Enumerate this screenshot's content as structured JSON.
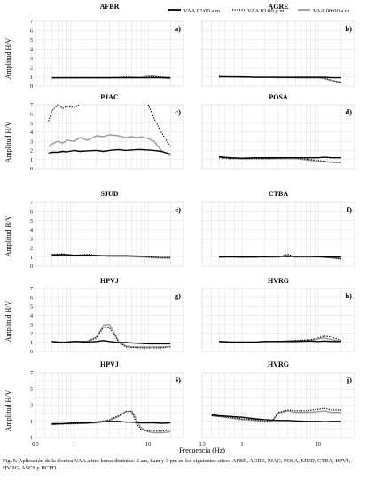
{
  "figure": {
    "caption": "Fig. 5: Aplicación de la técnica VAA a tres horas distintas: 2 am, 8am y 3 pm en los siguientes sitios: AFBR, AGRE, PJAC, POSA, SJUD, CTBA, HPVJ, HVRG, ASCS y HCPD.",
    "ylabel": "Amplitud H/V",
    "xlabel": "Frecuencia (Hz)",
    "legend": [
      {
        "label": "VAA 02:00 a.m.",
        "color": "#000000",
        "style": "solid"
      },
      {
        "label": "VAA 03:00 p.m.",
        "color": "#000000",
        "style": "dotted"
      },
      {
        "label": "VAA 08:00 a.m.",
        "color": "#999999",
        "style": "solid"
      }
    ],
    "xticks": [
      "0,3",
      "1",
      "10"
    ],
    "xtick_values": [
      0.3,
      1,
      10
    ]
  },
  "chart_data": [
    {
      "type": "line",
      "title": "AFBR",
      "letter": "a)",
      "xscale": "log",
      "xlim": [
        0.3,
        30
      ],
      "ylim": [
        0,
        7
      ],
      "yticks": [
        "0",
        "1",
        "2",
        "3",
        "4",
        "5",
        "6",
        "7"
      ],
      "x": [
        0.5,
        0.7,
        1,
        1.5,
        2,
        3,
        5,
        8,
        10,
        12,
        15,
        20
      ],
      "series": [
        {
          "name": "VAA 02:00 a.m.",
          "values": [
            0.9,
            0.9,
            0.9,
            0.9,
            0.9,
            0.9,
            0.9,
            0.9,
            0.9,
            0.9,
            0.9,
            0.9
          ]
        },
        {
          "name": "VAA 03:00 p.m.",
          "values": [
            0.9,
            0.9,
            0.9,
            0.9,
            0.9,
            0.9,
            1.0,
            0.9,
            1.0,
            1.0,
            1.0,
            0.9
          ]
        },
        {
          "name": "VAA 08:00 a.m.",
          "values": [
            0.85,
            0.9,
            0.9,
            0.9,
            0.9,
            0.9,
            0.9,
            0.95,
            1.1,
            1.1,
            0.9,
            0.8
          ]
        }
      ]
    },
    {
      "type": "line",
      "title": "AGRE",
      "letter": "b)",
      "xscale": "log",
      "xlim": [
        0.3,
        30
      ],
      "ylim": [
        0,
        7
      ],
      "yticks": [
        "",
        "",
        "",
        "",
        "",
        "",
        "",
        ""
      ],
      "x": [
        0.5,
        0.7,
        1,
        1.5,
        2,
        3,
        5,
        8,
        10,
        12,
        15,
        20
      ],
      "series": [
        {
          "name": "VAA 02:00 a.m.",
          "values": [
            1.0,
            1.0,
            1.0,
            0.95,
            0.95,
            0.95,
            0.95,
            0.95,
            0.95,
            0.95,
            0.9,
            0.9
          ]
        },
        {
          "name": "VAA 03:00 p.m.",
          "values": [
            1.05,
            1.0,
            1.0,
            0.95,
            0.95,
            0.95,
            0.9,
            0.9,
            0.9,
            0.9,
            0.6,
            0.4
          ]
        },
        {
          "name": "VAA 08:00 a.m.",
          "values": [
            1.0,
            1.0,
            0.95,
            0.95,
            0.95,
            0.9,
            0.9,
            0.9,
            0.9,
            0.8,
            0.6,
            0.4
          ]
        }
      ]
    },
    {
      "type": "line",
      "title": "PJAC",
      "letter": "c)",
      "xscale": "log",
      "xlim": [
        0.3,
        30
      ],
      "ylim": [
        0,
        7
      ],
      "yticks": [
        "0",
        "1",
        "2",
        "3",
        "4",
        "5",
        "6",
        "7"
      ],
      "x": [
        0.45,
        0.5,
        0.6,
        0.7,
        0.8,
        1,
        1.2,
        1.5,
        2,
        2.5,
        3,
        4,
        5,
        6,
        7,
        8,
        10,
        12,
        15,
        20
      ],
      "series": [
        {
          "name": "VAA 02:00 a.m.",
          "values": [
            1.7,
            1.8,
            1.8,
            1.9,
            1.85,
            2.0,
            1.9,
            1.95,
            2.0,
            1.9,
            2.0,
            2.1,
            2.0,
            2.05,
            2.1,
            2.1,
            2.05,
            2.0,
            1.9,
            1.6
          ]
        },
        {
          "name": "VAA 03:00 p.m.",
          "values": [
            5.2,
            6.3,
            7.0,
            6.6,
            6.8,
            6.7,
            7.0,
            null,
            null,
            null,
            null,
            null,
            null,
            null,
            null,
            null,
            7.0,
            5.5,
            4.0,
            2.4
          ]
        },
        {
          "name": "VAA 08:00 a.m.",
          "values": [
            2.4,
            2.7,
            3.0,
            2.8,
            3.1,
            3.0,
            3.4,
            3.1,
            3.6,
            3.5,
            3.7,
            3.6,
            3.4,
            3.5,
            3.4,
            3.5,
            3.3,
            3.0,
            2.0,
            1.4
          ]
        }
      ]
    },
    {
      "type": "line",
      "title": "POSA",
      "letter": "d)",
      "xscale": "log",
      "xlim": [
        0.3,
        30
      ],
      "ylim": [
        0,
        7
      ],
      "yticks": [
        "",
        "",
        "",
        "",
        "",
        "",
        "",
        ""
      ],
      "x": [
        0.5,
        0.7,
        1,
        1.5,
        2,
        3,
        5,
        8,
        10,
        12,
        15,
        20
      ],
      "series": [
        {
          "name": "VAA 02:00 a.m.",
          "values": [
            1.3,
            1.2,
            1.15,
            1.2,
            1.2,
            1.2,
            1.2,
            1.2,
            1.2,
            1.25,
            1.2,
            1.2
          ]
        },
        {
          "name": "VAA 03:00 p.m.",
          "values": [
            1.2,
            1.1,
            1.1,
            1.1,
            1.1,
            1.15,
            1.2,
            1.0,
            0.9,
            0.8,
            0.7,
            0.7
          ]
        },
        {
          "name": "VAA 08:00 a.m.",
          "values": [
            1.25,
            1.15,
            1.1,
            1.1,
            1.1,
            1.1,
            1.1,
            0.9,
            0.8,
            0.75,
            0.7,
            0.65
          ]
        }
      ]
    },
    {
      "type": "line",
      "title": "SJUD",
      "letter": "e)",
      "xscale": "log",
      "xlim": [
        0.3,
        30
      ],
      "ylim": [
        0,
        7
      ],
      "yticks": [
        "0",
        "1",
        "2",
        "3",
        "4",
        "5",
        "6",
        "7"
      ],
      "x": [
        0.5,
        0.7,
        1,
        1.5,
        2,
        3,
        5,
        8,
        10,
        12,
        15,
        20
      ],
      "series": [
        {
          "name": "VAA 02:00 a.m.",
          "values": [
            1.2,
            1.25,
            1.2,
            1.2,
            1.15,
            1.15,
            1.15,
            1.1,
            1.1,
            1.1,
            1.1,
            1.1
          ]
        },
        {
          "name": "VAA 03:00 p.m.",
          "values": [
            1.3,
            1.35,
            1.2,
            1.3,
            1.2,
            1.1,
            1.1,
            1.1,
            1.0,
            1.0,
            0.9,
            0.9
          ]
        },
        {
          "name": "VAA 08:00 a.m.",
          "values": [
            1.25,
            1.3,
            1.2,
            1.2,
            1.2,
            1.1,
            1.1,
            1.0,
            1.0,
            0.9,
            0.9,
            0.9
          ]
        }
      ]
    },
    {
      "type": "line",
      "title": "CTBA",
      "letter": "f)",
      "xscale": "log",
      "xlim": [
        0.3,
        30
      ],
      "ylim": [
        0,
        7
      ],
      "yticks": [
        "",
        "",
        "",
        "",
        "",
        "",
        "",
        ""
      ],
      "x": [
        0.5,
        0.7,
        1,
        1.5,
        2,
        3,
        4,
        5,
        7,
        10,
        12,
        15,
        20
      ],
      "series": [
        {
          "name": "VAA 02:00 a.m.",
          "values": [
            1.0,
            1.05,
            1.0,
            1.0,
            1.05,
            1.1,
            1.05,
            1.1,
            1.1,
            1.05,
            1.0,
            1.0,
            1.0
          ]
        },
        {
          "name": "VAA 03:00 p.m.",
          "values": [
            1.05,
            1.0,
            1.0,
            1.1,
            1.0,
            1.0,
            1.3,
            1.0,
            1.05,
            1.05,
            1.0,
            0.95,
            0.8
          ]
        },
        {
          "name": "VAA 08:00 a.m.",
          "values": [
            1.0,
            1.0,
            1.0,
            1.05,
            1.0,
            1.0,
            1.2,
            1.0,
            1.0,
            1.0,
            1.0,
            0.9,
            0.8
          ]
        }
      ]
    },
    {
      "type": "line",
      "title": "HPVJ",
      "letter": "g)",
      "xscale": "log",
      "xlim": [
        0.3,
        30
      ],
      "ylim": [
        0,
        7
      ],
      "yticks": [
        "0",
        "1",
        "2",
        "3",
        "4",
        "5",
        "6",
        "7"
      ],
      "x": [
        0.5,
        0.7,
        1,
        1.5,
        2,
        2.5,
        3,
        3.5,
        4,
        5,
        6,
        8,
        10,
        12,
        15,
        20
      ],
      "series": [
        {
          "name": "VAA 02:00 a.m.",
          "values": [
            1.1,
            1.0,
            1.1,
            1.05,
            1.1,
            1.2,
            1.1,
            1.05,
            1.0,
            1.0,
            0.95,
            0.9,
            0.85,
            0.85,
            0.85,
            0.85
          ]
        },
        {
          "name": "VAA 03:00 p.m.",
          "values": [
            1.1,
            1.05,
            1.1,
            1.1,
            1.5,
            2.7,
            2.6,
            1.9,
            1.0,
            0.5,
            0.45,
            0.4,
            0.4,
            0.4,
            0.4,
            0.5
          ]
        },
        {
          "name": "VAA 08:00 a.m.",
          "values": [
            1.05,
            1.0,
            1.1,
            1.1,
            1.6,
            2.9,
            3.0,
            2.0,
            1.1,
            0.6,
            0.5,
            0.5,
            0.5,
            0.5,
            0.5,
            0.55
          ]
        }
      ]
    },
    {
      "type": "line",
      "title": "HVRG",
      "letter": "h)",
      "xscale": "log",
      "xlim": [
        0.3,
        30
      ],
      "ylim": [
        0,
        7
      ],
      "yticks": [
        "",
        "",
        "",
        "",
        "",
        "",
        "",
        ""
      ],
      "x": [
        0.5,
        0.7,
        1,
        1.5,
        2,
        3,
        5,
        8,
        10,
        12,
        15,
        20
      ],
      "series": [
        {
          "name": "VAA 02:00 a.m.",
          "values": [
            1.1,
            1.05,
            1.05,
            1.05,
            1.1,
            1.1,
            1.1,
            1.15,
            1.1,
            1.15,
            1.1,
            1.1
          ]
        },
        {
          "name": "VAA 03:00 p.m.",
          "values": [
            1.1,
            1.0,
            1.0,
            1.0,
            1.1,
            1.1,
            1.2,
            1.3,
            1.5,
            1.7,
            1.6,
            1.2
          ]
        },
        {
          "name": "VAA 08:00 a.m.",
          "values": [
            1.1,
            1.05,
            1.0,
            1.0,
            1.1,
            1.1,
            1.2,
            1.2,
            1.4,
            1.5,
            1.3,
            1.1
          ]
        }
      ]
    },
    {
      "type": "line",
      "title": "HPVJ",
      "letter": "i)",
      "xscale": "log",
      "xlim": [
        0.3,
        30
      ],
      "ylim": [
        -1,
        7
      ],
      "yticks": [
        "-1",
        "1",
        "3",
        "5",
        "7"
      ],
      "ytick_values": [
        -1,
        1,
        3,
        5,
        7
      ],
      "x": [
        0.5,
        0.7,
        1,
        1.5,
        2,
        3,
        4,
        5,
        6,
        7,
        8,
        10,
        12,
        15,
        20
      ],
      "series": [
        {
          "name": "VAA 02:00 a.m.",
          "values": [
            0.7,
            0.7,
            0.8,
            0.8,
            0.9,
            1.0,
            1.0,
            0.9,
            0.9,
            0.85,
            0.8,
            0.8,
            0.8,
            0.75,
            0.8
          ]
        },
        {
          "name": "VAA 03:00 p.m.",
          "values": [
            0.6,
            0.7,
            0.7,
            0.8,
            0.9,
            1.2,
            1.7,
            2.2,
            2.2,
            0.7,
            0.0,
            -0.2,
            -0.2,
            -0.2,
            -0.1
          ]
        },
        {
          "name": "VAA 08:00 a.m.",
          "values": [
            0.6,
            0.7,
            0.7,
            0.75,
            0.8,
            1.1,
            1.6,
            2.2,
            2.3,
            1.2,
            0.2,
            -0.3,
            -0.4,
            -0.4,
            -0.3
          ]
        }
      ]
    },
    {
      "type": "line",
      "title": "HVRG",
      "letter": "j)",
      "xscale": "log",
      "xlim": [
        0.3,
        30
      ],
      "ylim": [
        -1,
        7
      ],
      "yticks": [
        "",
        "",
        "",
        "",
        ""
      ],
      "ytick_values": [
        -1,
        1,
        3,
        5,
        7
      ],
      "x": [
        0.4,
        0.5,
        0.7,
        1,
        1.5,
        2,
        2.5,
        3,
        4,
        5,
        7,
        10,
        12,
        15,
        20
      ],
      "series": [
        {
          "name": "VAA 02:00 a.m.",
          "values": [
            1.8,
            1.7,
            1.6,
            1.5,
            1.3,
            1.2,
            1.15,
            1.1,
            1.1,
            1.05,
            1.0,
            1.0,
            0.95,
            1.0,
            1.0
          ]
        },
        {
          "name": "VAA 03:00 p.m.",
          "values": [
            1.7,
            1.6,
            1.5,
            1.3,
            1.2,
            1.0,
            1.1,
            2.1,
            2.4,
            2.3,
            2.3,
            2.5,
            2.6,
            2.4,
            2.4
          ]
        },
        {
          "name": "VAA 08:00 a.m.",
          "values": [
            1.7,
            1.6,
            1.4,
            1.2,
            1.1,
            0.9,
            1.0,
            2.0,
            2.3,
            2.1,
            2.1,
            2.2,
            2.3,
            2.1,
            2.1
          ]
        }
      ]
    }
  ]
}
